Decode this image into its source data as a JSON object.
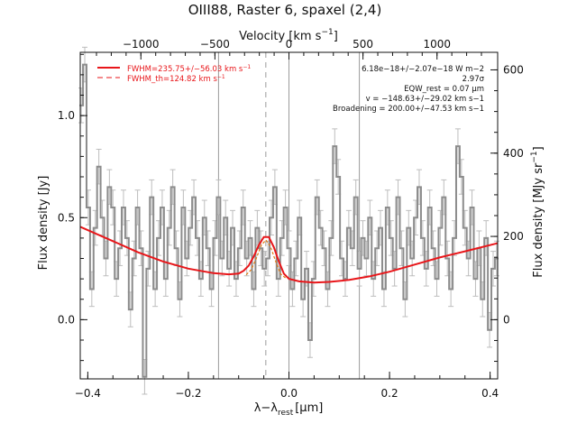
{
  "chart_data": {
    "type": "line",
    "title": "OIII88, Raster 6, spaxel (2,4)",
    "xlabel": "λ−λ",
    "xlabel_sub": "rest",
    "xlabel_unit": "[μm]",
    "ylabel": "Flux density [Jy]",
    "top_axis_label": "Velocity [km s",
    "top_axis_sup": "−1",
    "top_axis_close": "]",
    "right_axis_label": "Flux density [MJy sr",
    "right_axis_sup": "−1",
    "right_axis_close": "]",
    "xlim": [
      -0.415,
      0.415
    ],
    "ylim": [
      -0.29,
      1.31
    ],
    "x_ticks": [
      -0.4,
      -0.2,
      0.0,
      0.2,
      0.4
    ],
    "x_tick_labels": [
      "−0.4",
      "−0.2",
      "0.0",
      "0.2",
      "0.4"
    ],
    "y_ticks": [
      0.0,
      0.5,
      1.0
    ],
    "y_tick_labels": [
      "0.0",
      "0.5",
      "1.0"
    ],
    "top_ticks": [
      -1000,
      -500,
      0,
      500,
      1000
    ],
    "top_tick_labels": [
      "−1000",
      "−500",
      "0",
      "500",
      "1000"
    ],
    "right_ticks": [
      0,
      200,
      400,
      600
    ],
    "right_tick_labels": [
      "0",
      "200",
      "400",
      "600"
    ],
    "right_scale": {
      "offset": 0.0,
      "jy_per_unit": 0.00204
    },
    "velocity_scale": {
      "um_per_kms": 0.0002944
    },
    "vertical_lines_solid": [
      -0.14,
      0.0,
      0.14
    ],
    "vertical_line_dashed": -0.046,
    "legend": [
      {
        "label": "FWHM=235.75+/−56.03 km s",
        "sup": "−1",
        "style": "solid"
      },
      {
        "label": "FWHM_th=124.82 km s",
        "sup": "−1",
        "style": "dashed"
      }
    ],
    "annotations": [
      "6.18e−18+/−2.07e−18 W m−2",
      "2.97σ",
      "EQW_rest = 0.07 μm",
      "v = −148.63+/−29.02 km s−1",
      "Broadening = 200.00+/−47.53 km s−1"
    ],
    "colors": {
      "fit": "#e8161a",
      "spectrum": "#8c8c8c",
      "errors": "#bdbdbd",
      "thermal": "#e07a12"
    },
    "series": [
      {
        "name": "spectrum",
        "style": "step",
        "x": [
          -0.413,
          -0.406,
          -0.399,
          -0.392,
          -0.385,
          -0.378,
          -0.371,
          -0.364,
          -0.357,
          -0.35,
          -0.343,
          -0.336,
          -0.329,
          -0.322,
          -0.315,
          -0.308,
          -0.301,
          -0.294,
          -0.287,
          -0.28,
          -0.273,
          -0.266,
          -0.259,
          -0.252,
          -0.245,
          -0.238,
          -0.231,
          -0.224,
          -0.217,
          -0.21,
          -0.203,
          -0.196,
          -0.189,
          -0.182,
          -0.175,
          -0.168,
          -0.161,
          -0.154,
          -0.147,
          -0.14,
          -0.133,
          -0.126,
          -0.119,
          -0.112,
          -0.105,
          -0.098,
          -0.091,
          -0.084,
          -0.077,
          -0.07,
          -0.063,
          -0.056,
          -0.049,
          -0.042,
          -0.035,
          -0.028,
          -0.021,
          -0.014,
          -0.007,
          0.0,
          0.007,
          0.014,
          0.021,
          0.028,
          0.035,
          0.042,
          0.049,
          0.056,
          0.063,
          0.07,
          0.077,
          0.084,
          0.091,
          0.098,
          0.105,
          0.112,
          0.119,
          0.126,
          0.133,
          0.14,
          0.147,
          0.154,
          0.161,
          0.168,
          0.175,
          0.182,
          0.189,
          0.196,
          0.203,
          0.21,
          0.217,
          0.224,
          0.231,
          0.238,
          0.245,
          0.252,
          0.259,
          0.266,
          0.273,
          0.28,
          0.287,
          0.294,
          0.301,
          0.308,
          0.315,
          0.322,
          0.329,
          0.336,
          0.343,
          0.35,
          0.357,
          0.364,
          0.371,
          0.378,
          0.385,
          0.392,
          0.399,
          0.406,
          0.413
        ],
        "y": [
          1.05,
          1.25,
          0.55,
          0.15,
          0.45,
          0.75,
          0.5,
          0.3,
          0.65,
          0.55,
          0.2,
          0.35,
          0.55,
          0.4,
          0.05,
          0.3,
          0.55,
          0.35,
          -0.28,
          0.25,
          0.6,
          0.15,
          0.4,
          0.55,
          0.2,
          0.45,
          0.65,
          0.35,
          0.1,
          0.55,
          0.3,
          0.45,
          0.6,
          0.4,
          0.2,
          0.5,
          0.35,
          0.15,
          0.4,
          0.6,
          0.3,
          0.5,
          0.25,
          0.45,
          0.2,
          0.35,
          0.55,
          0.3,
          0.4,
          0.15,
          0.45,
          0.35,
          0.25,
          0.3,
          0.5,
          0.65,
          0.2,
          0.4,
          0.55,
          0.35,
          0.15,
          0.3,
          0.5,
          0.1,
          0.25,
          -0.1,
          0.2,
          0.6,
          0.45,
          0.35,
          0.15,
          0.4,
          0.85,
          0.7,
          0.3,
          0.2,
          0.45,
          0.35,
          0.6,
          0.25,
          0.4,
          0.3,
          0.5,
          0.2,
          0.35,
          0.45,
          0.15,
          0.55,
          0.4,
          0.25,
          0.6,
          0.35,
          0.1,
          0.45,
          0.3,
          0.5,
          0.65,
          0.4,
          0.25,
          0.55,
          0.35,
          0.2,
          0.45,
          0.6,
          0.3,
          0.15,
          0.4,
          0.85,
          0.7,
          0.45,
          0.3,
          0.55,
          0.2,
          0.35,
          0.1,
          0.4,
          -0.05,
          0.25,
          0.3
        ],
        "err": 0.085
      },
      {
        "name": "fit",
        "style": "solid",
        "x": [
          -0.415,
          -0.35,
          -0.3,
          -0.25,
          -0.2,
          -0.15,
          -0.12,
          -0.1,
          -0.09,
          -0.08,
          -0.07,
          -0.06,
          -0.05,
          -0.04,
          -0.03,
          -0.02,
          -0.01,
          0.0,
          0.02,
          0.05,
          0.08,
          0.12,
          0.16,
          0.2,
          0.25,
          0.3,
          0.35,
          0.415
        ],
        "y": [
          0.455,
          0.385,
          0.33,
          0.285,
          0.25,
          0.228,
          0.222,
          0.226,
          0.24,
          0.265,
          0.31,
          0.365,
          0.405,
          0.405,
          0.355,
          0.285,
          0.225,
          0.2,
          0.188,
          0.182,
          0.185,
          0.195,
          0.212,
          0.235,
          0.27,
          0.305,
          0.335,
          0.375
        ]
      },
      {
        "name": "thermal",
        "style": "dashed",
        "x": [
          -0.085,
          -0.075,
          -0.065,
          -0.055,
          -0.046,
          -0.037,
          -0.027,
          -0.017,
          -0.007
        ],
        "y": [
          0.22,
          0.245,
          0.3,
          0.365,
          0.39,
          0.36,
          0.29,
          0.225,
          0.205
        ]
      }
    ]
  }
}
